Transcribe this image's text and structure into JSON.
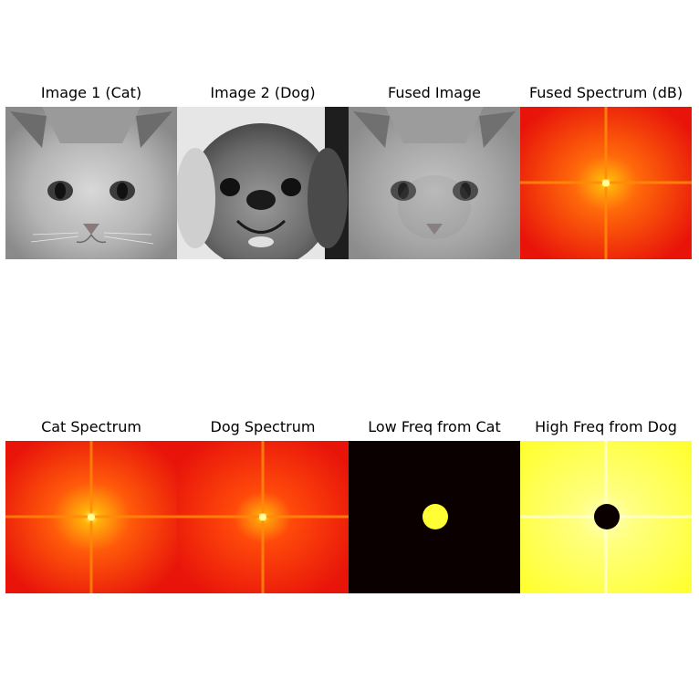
{
  "figure": {
    "panels": [
      {
        "id": "cat-image",
        "title": "Image 1 (Cat)",
        "kind": "photo-cat"
      },
      {
        "id": "dog-image",
        "title": "Image 2 (Dog)",
        "kind": "photo-dog"
      },
      {
        "id": "fused-image",
        "title": "Fused Image",
        "kind": "photo-fused"
      },
      {
        "id": "fused-spectrum",
        "title": "Fused Spectrum (dB)",
        "kind": "spectrum"
      },
      {
        "id": "cat-spectrum",
        "title": "Cat Spectrum",
        "kind": "spectrum"
      },
      {
        "id": "dog-spectrum",
        "title": "Dog Spectrum",
        "kind": "spectrum"
      },
      {
        "id": "low-freq-mask",
        "title": "Low Freq from Cat",
        "kind": "lowpass-mask"
      },
      {
        "id": "high-freq-mask",
        "title": "High Freq from Dog",
        "kind": "highpass-mask"
      }
    ],
    "colors": {
      "spectrum_outer": "#e8140a",
      "spectrum_mid": "#ff5a0a",
      "spectrum_center": "#ffff66",
      "mask_dark": "#0a0000",
      "mask_bright": "#ffff33",
      "photo_light": "#c8c8c8",
      "photo_dark": "#3a3a3a"
    }
  }
}
